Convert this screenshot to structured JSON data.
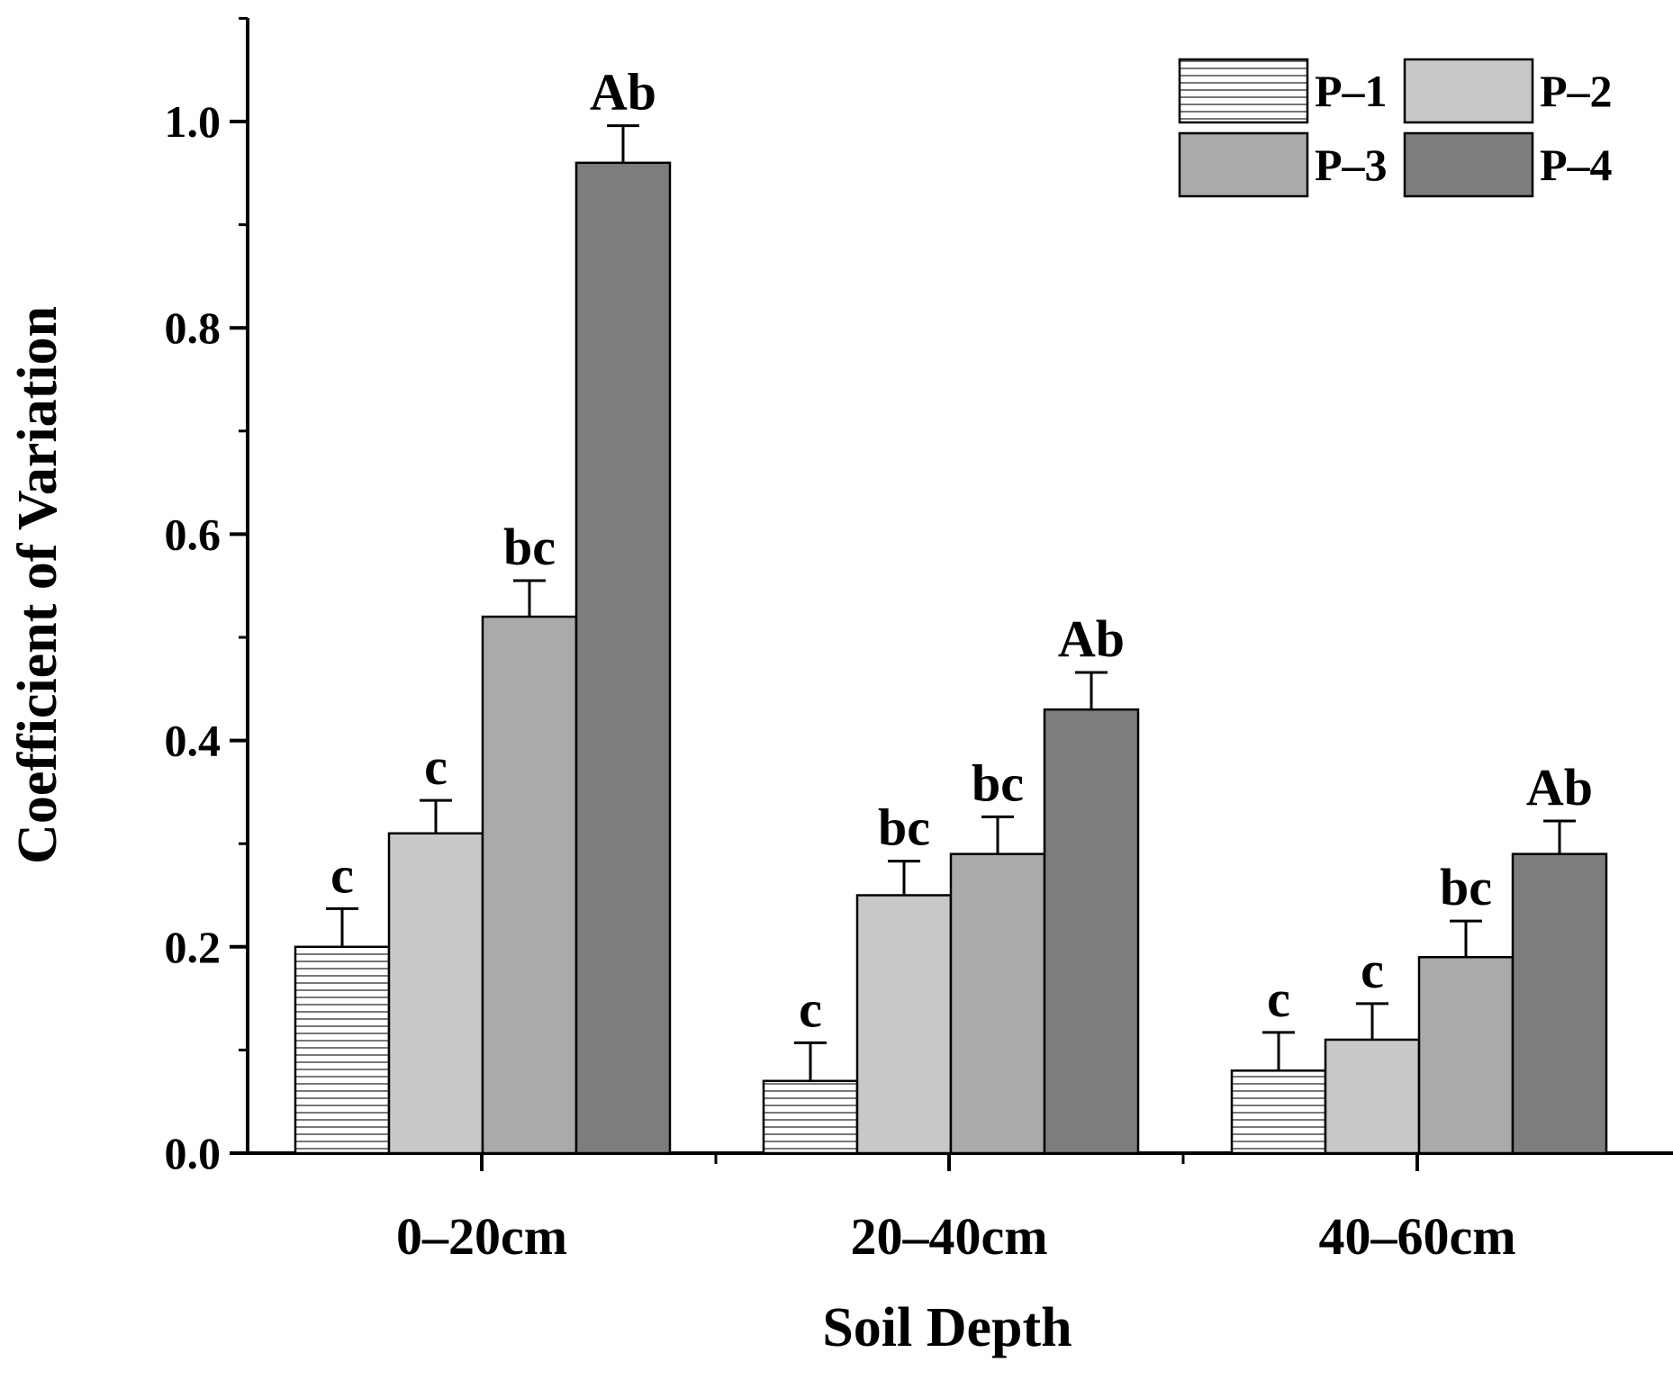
{
  "chart_data": {
    "type": "bar",
    "title": "",
    "xlabel": "Soil Depth",
    "ylabel": "Coefficient  of  Variation",
    "ylim": [
      0,
      1.1
    ],
    "yticks": [
      "0.0",
      "0.2",
      "0.4",
      "0.6",
      "0.8",
      "1.0"
    ],
    "categories": [
      "0–20cm",
      "20–40cm",
      "40–60cm"
    ],
    "legend_position": "top-right",
    "grid": false,
    "series": [
      {
        "name": "P–1",
        "pattern": "horizontal-lines",
        "color": "#ffffff",
        "values": [
          0.2,
          0.07,
          0.08
        ],
        "errors": [
          0.037,
          0.037,
          0.037
        ],
        "labels": [
          "c",
          "c",
          "c"
        ]
      },
      {
        "name": "P–2",
        "pattern": "solid",
        "color": "#c8c8c8",
        "values": [
          0.31,
          0.25,
          0.11
        ],
        "errors": [
          0.032,
          0.033,
          0.035
        ],
        "labels": [
          "c",
          "bc",
          "c"
        ]
      },
      {
        "name": "P–3",
        "pattern": "solid",
        "color": "#aaaaaa",
        "values": [
          0.52,
          0.29,
          0.19
        ],
        "errors": [
          0.035,
          0.036,
          0.035
        ],
        "labels": [
          "bc",
          "bc",
          "bc"
        ]
      },
      {
        "name": "P–4",
        "pattern": "solid",
        "color": "#7d7d7d",
        "values": [
          0.96,
          0.43,
          0.29
        ],
        "errors": [
          0.036,
          0.036,
          0.032
        ],
        "labels": [
          "Ab",
          "Ab",
          "Ab"
        ]
      }
    ]
  }
}
